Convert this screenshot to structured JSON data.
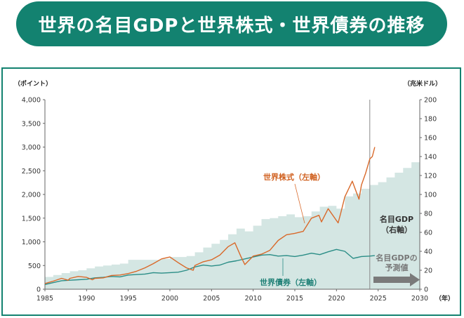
{
  "title": "世界の名目GDPと世界株式・世界債券の推移",
  "chart_data": {
    "type": "line",
    "left_unit": "（ポイント）",
    "right_unit": "（兆米ドル）",
    "x_unit": "（年）",
    "xlim": [
      1985,
      2030
    ],
    "ylim_left": [
      0,
      4000
    ],
    "ylim_right": [
      0,
      200
    ],
    "x_ticks": [
      1985,
      1990,
      1995,
      2000,
      2005,
      2010,
      2015,
      2020,
      2025,
      2030
    ],
    "y_left_ticks": [
      "0",
      "500",
      "1,000",
      "1,500",
      "2,000",
      "2,500",
      "3,000",
      "3,500",
      "4,000"
    ],
    "y_left_values": [
      0,
      500,
      1000,
      1500,
      2000,
      2500,
      3000,
      3500,
      4000
    ],
    "y_right_ticks": [
      "0",
      "20",
      "40",
      "60",
      "80",
      "100",
      "120",
      "140",
      "160",
      "180",
      "200"
    ],
    "y_right_values": [
      0,
      20,
      40,
      60,
      80,
      100,
      120,
      140,
      160,
      180,
      200
    ],
    "marker_year": 2024,
    "series": [
      {
        "name": "名目GDP",
        "axis": "right",
        "kind": "step-area",
        "color": "#d4e6e3",
        "x": [
          1985,
          1986,
          1987,
          1988,
          1989,
          1990,
          1991,
          1992,
          1993,
          1994,
          1995,
          1996,
          1997,
          1998,
          1999,
          2000,
          2001,
          2002,
          2003,
          2004,
          2005,
          2006,
          2007,
          2008,
          2009,
          2010,
          2011,
          2012,
          2013,
          2014,
          2015,
          2016,
          2017,
          2018,
          2019,
          2020,
          2021,
          2022,
          2023,
          2024,
          2025,
          2026,
          2027,
          2028,
          2029,
          2030
        ],
        "values": [
          13,
          15,
          17,
          19,
          20,
          22,
          24,
          25,
          26,
          27,
          31,
          31,
          31,
          31,
          32,
          34,
          34,
          35,
          39,
          44,
          48,
          52,
          58,
          64,
          61,
          67,
          74,
          75,
          77,
          79,
          76,
          77,
          82,
          87,
          88,
          85,
          98,
          101,
          106,
          110,
          113,
          118,
          123,
          128,
          134,
          139
        ]
      },
      {
        "name": "世界株式（左軸）",
        "axis": "left",
        "color": "#d9692a",
        "x": [
          1985,
          1986,
          1987,
          1987.8,
          1988,
          1989,
          1990,
          1990.7,
          1991,
          1992,
          1993,
          1994,
          1995,
          1996,
          1997,
          1998,
          1999,
          2000,
          2001,
          2002,
          2002.8,
          2003,
          2004,
          2005,
          2006,
          2007,
          2007.8,
          2008.5,
          2009,
          2010,
          2011,
          2012,
          2013,
          2014,
          2015,
          2016,
          2017,
          2017.9,
          2018.2,
          2019,
          2020.2,
          2020.5,
          2021,
          2021.9,
          2022.7,
          2023,
          2023.5,
          2024,
          2024.3,
          2024.6
        ],
        "values": [
          120,
          170,
          230,
          190,
          230,
          270,
          250,
          200,
          230,
          240,
          290,
          300,
          330,
          380,
          450,
          540,
          640,
          680,
          560,
          450,
          400,
          500,
          580,
          620,
          720,
          900,
          980,
          700,
          520,
          700,
          740,
          820,
          1030,
          1150,
          1180,
          1220,
          1500,
          1560,
          1420,
          1700,
          1400,
          1600,
          1950,
          2280,
          1900,
          2200,
          2450,
          2750,
          2800,
          3000
        ]
      },
      {
        "name": "世界債券（左軸）",
        "axis": "left",
        "color": "#2a8d86",
        "x": [
          1985,
          1986,
          1987,
          1988,
          1989,
          1990,
          1991,
          1992,
          1993,
          1994,
          1995,
          1996,
          1997,
          1998,
          1999,
          2000,
          2001,
          2002,
          2003,
          2004,
          2005,
          2006,
          2007,
          2008,
          2009,
          2010,
          2011,
          2012,
          2013,
          2014,
          2015,
          2016,
          2017,
          2018,
          2019,
          2020,
          2021,
          2022,
          2023,
          2024,
          2024.6
        ],
        "values": [
          100,
          140,
          180,
          190,
          200,
          210,
          240,
          250,
          270,
          260,
          300,
          310,
          320,
          350,
          340,
          350,
          360,
          400,
          470,
          510,
          490,
          510,
          570,
          600,
          640,
          680,
          720,
          730,
          700,
          710,
          690,
          720,
          760,
          730,
          790,
          840,
          800,
          650,
          690,
          700,
          710
        ]
      }
    ],
    "annotations": {
      "stock": "世界株式（左軸）",
      "bond": "世界債券（左軸）",
      "gdp_line1": "名目GDP",
      "gdp_line2": "（右軸）",
      "forecast_line1": "名目GDPの",
      "forecast_line2": "予測値"
    }
  }
}
